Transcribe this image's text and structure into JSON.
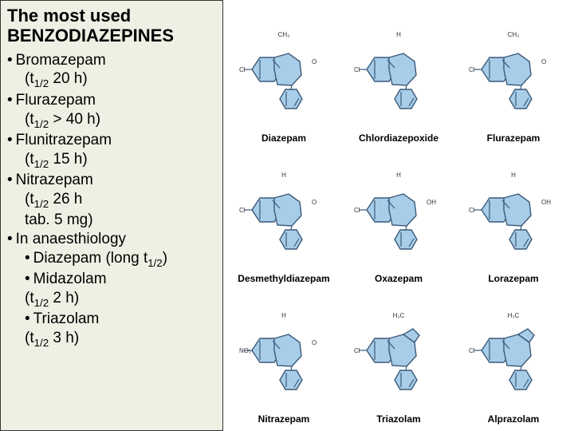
{
  "title_line1": "The most used",
  "title_line2": "BENZODIAZEPINES",
  "items": [
    {
      "name": "Bromazepam",
      "halflife": "20 h"
    },
    {
      "name": "Flurazepam",
      "halflife": "> 40 h"
    },
    {
      "name": "Flunitrazepam",
      "halflife": "15 h"
    },
    {
      "name": "Nitrazepam",
      "halflife": "26 h",
      "extra": "tab. 5 mg)"
    }
  ],
  "anaesthiology_label": "In anaesthiology",
  "anaesth_items": [
    {
      "name": "Diazepam (long t",
      "halflife_suffix": ")"
    },
    {
      "name": "Midazolam",
      "halflife": "2 h"
    },
    {
      "name": "Triazolam",
      "halflife": "3 h"
    }
  ],
  "structures": [
    "Diazepam",
    "Chlordiazepoxide",
    "Flurazepam",
    "Desmethyldiazepam",
    "Oxazepam",
    "Lorazepam",
    "Nitrazepam",
    "Triazolam",
    "Alprazolam"
  ],
  "colors": {
    "ring_fill": "#a8cde8",
    "ring_stroke": "#3a5a7a",
    "panel_bg": "#eef0e4"
  },
  "halflife_prefix": "(t",
  "halflife_sub": "1/2"
}
